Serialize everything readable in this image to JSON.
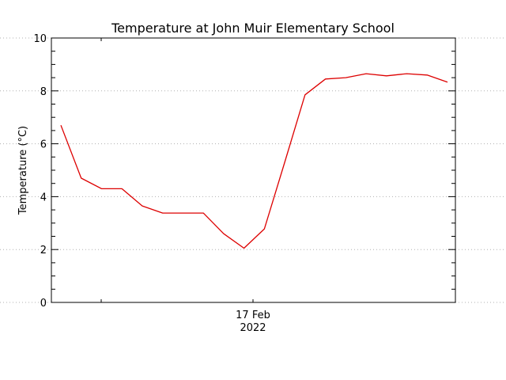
{
  "chart_data": {
    "type": "line",
    "title": "Temperature at John Muir Elementary School",
    "ylabel": "Temperature (°C)",
    "xlabel": "",
    "ylim": [
      0,
      10
    ],
    "yticks": [
      0,
      2,
      4,
      6,
      8,
      10
    ],
    "x_tick_labels": [
      {
        "line1": "17 Feb",
        "line2": "2022"
      }
    ],
    "grid": true,
    "series": [
      {
        "color": "#dd0000",
        "values": [
          6.7,
          4.7,
          4.3,
          4.3,
          3.65,
          3.38,
          3.38,
          3.38,
          2.6,
          2.05,
          2.78,
          5.3,
          7.85,
          8.45,
          8.5,
          8.65,
          8.57,
          8.65,
          8.6,
          8.33
        ]
      }
    ]
  }
}
